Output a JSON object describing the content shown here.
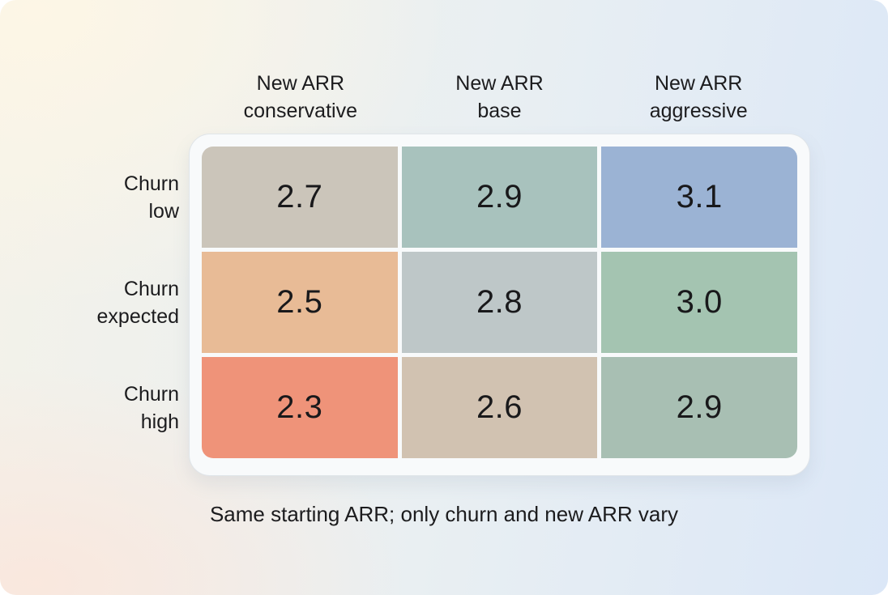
{
  "chart_data": {
    "type": "heatmap",
    "title": "",
    "columns": [
      {
        "label": "New ARR conservative",
        "line1": "New ARR",
        "line2": "conservative"
      },
      {
        "label": "New ARR base",
        "line1": "New ARR",
        "line2": "base"
      },
      {
        "label": "New ARR aggressive",
        "line1": "New ARR",
        "line2": "aggressive"
      }
    ],
    "rows": [
      {
        "label": "Churn low",
        "line1": "Churn",
        "line2": "low"
      },
      {
        "label": "Churn expected",
        "line1": "Churn",
        "line2": "expected"
      },
      {
        "label": "Churn high",
        "line1": "Churn",
        "line2": "high"
      }
    ],
    "values": [
      [
        2.7,
        2.9,
        3.1
      ],
      [
        2.5,
        2.8,
        3.0
      ],
      [
        2.3,
        2.6,
        2.9
      ]
    ],
    "display": [
      [
        "2.7",
        "2.9",
        "3.1"
      ],
      [
        "2.5",
        "2.8",
        "3.0"
      ],
      [
        "2.3",
        "2.6",
        "2.9"
      ]
    ],
    "cell_colors": [
      [
        "#CBC5BA",
        "#A8C2BD",
        "#9BB3D4"
      ],
      [
        "#E8BB96",
        "#BEC7C8",
        "#A4C4B1"
      ],
      [
        "#EF9379",
        "#D1C2B1",
        "#A8BFB3"
      ]
    ],
    "value_range": [
      2.3,
      3.1
    ],
    "legend": "none",
    "caption": "Same starting ARR; only churn and new ARR vary"
  },
  "theme": {
    "background_corners": [
      "#FDF6E7",
      "#E3F1F9",
      "#FAEDE6",
      "#DBE7F7"
    ],
    "frame_bg": "#F8FAFB",
    "gap_color": "#F8FAFB",
    "text_color": "#1C1C1E"
  }
}
